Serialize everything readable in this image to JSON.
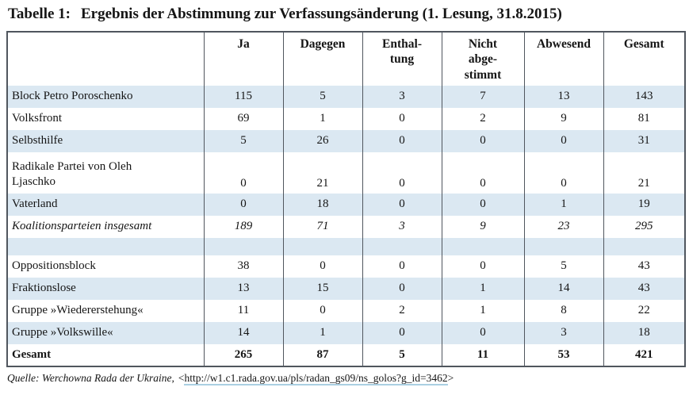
{
  "caption": {
    "label": "Tabelle 1:",
    "text": "Ergebnis der Abstimmung zur Verfassungsänderung (1. Lesung, 31.8.2015)"
  },
  "table": {
    "columns": [
      "Ja",
      "Dagegen",
      "Enthal-\ntung",
      "Nicht\nabge-\nstimmt",
      "Abwesend",
      "Gesamt"
    ],
    "rows": [
      {
        "label": "Block Petro Poroschenko",
        "values": [
          115,
          5,
          3,
          7,
          13,
          143
        ],
        "style": "normal",
        "shaded": true
      },
      {
        "label": "Volksfront",
        "values": [
          69,
          1,
          0,
          2,
          9,
          81
        ],
        "style": "normal",
        "shaded": false
      },
      {
        "label": "Selbsthilfe",
        "values": [
          5,
          26,
          0,
          0,
          0,
          31
        ],
        "style": "normal",
        "shaded": true
      },
      {
        "label": "Radikale Partei von Oleh\nLjaschko",
        "values": [
          0,
          21,
          0,
          0,
          0,
          21
        ],
        "style": "normal",
        "shaded": false,
        "tall": true
      },
      {
        "label": "Vaterland",
        "values": [
          0,
          18,
          0,
          0,
          1,
          19
        ],
        "style": "normal",
        "shaded": true
      },
      {
        "label": "Koalitionsparteien insgesamt",
        "values": [
          189,
          71,
          3,
          9,
          23,
          295
        ],
        "style": "italic",
        "shaded": false
      },
      {
        "label": "",
        "values": [
          "",
          "",
          "",
          "",
          "",
          ""
        ],
        "style": "empty",
        "shaded": true
      },
      {
        "label": "Oppositionsblock",
        "values": [
          38,
          0,
          0,
          0,
          5,
          43
        ],
        "style": "normal",
        "shaded": false
      },
      {
        "label": "Fraktionslose",
        "values": [
          13,
          15,
          0,
          1,
          14,
          43
        ],
        "style": "normal",
        "shaded": true
      },
      {
        "label": "Gruppe »Wiedererstehung«",
        "values": [
          11,
          0,
          2,
          1,
          8,
          22
        ],
        "style": "normal",
        "shaded": false
      },
      {
        "label": "Gruppe »Volkswille«",
        "values": [
          14,
          1,
          0,
          0,
          3,
          18
        ],
        "style": "normal",
        "shaded": true
      },
      {
        "label": "Gesamt",
        "values": [
          265,
          87,
          5,
          11,
          53,
          421
        ],
        "style": "bold",
        "shaded": false
      }
    ]
  },
  "source": {
    "prefix": "Quelle: Werchowna Rada der Ukraine,",
    "bracket_open": "<",
    "url": "http://w1.c1.rada.gov.ua/pls/radan_gs09/ns_golos?g_id=3462",
    "bracket_close": ">"
  },
  "colors": {
    "row_shade": "#dbe8f2",
    "table_border": "#50565e",
    "link_underline": "#aacfe2",
    "text": "#151515"
  }
}
